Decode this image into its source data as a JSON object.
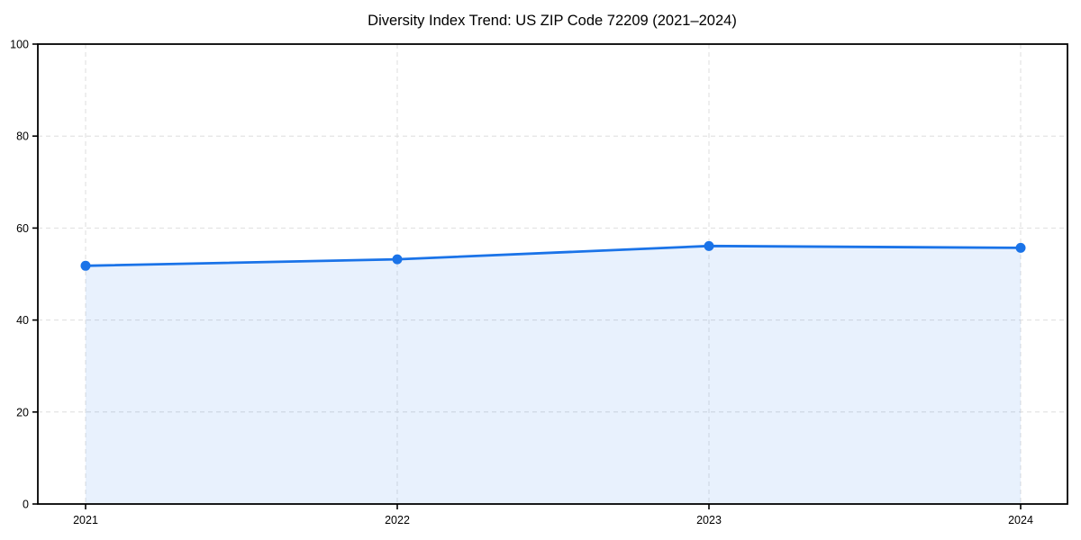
{
  "chart_data": {
    "type": "area",
    "title": "Diversity Index Trend: US ZIP Code 72209 (2021–2024)",
    "categories": [
      "2021",
      "2022",
      "2023",
      "2024"
    ],
    "series": [
      {
        "name": "Diversity Index",
        "values": [
          51.8,
          53.2,
          56.1,
          55.7
        ]
      }
    ],
    "xlabel": "",
    "ylabel": "",
    "ylim": [
      0,
      100
    ],
    "yticks": [
      0,
      20,
      40,
      60,
      80,
      100
    ],
    "grid": true,
    "grid_style": "dashed",
    "legend": false,
    "marker": "circle",
    "colors": {
      "line": "#1a73e8",
      "marker": "#1a73e8",
      "fill": "#1a73e8",
      "fill_opacity": 0.1,
      "grid": "#dedede",
      "spine": "#000000",
      "tick": "#000000",
      "title": "#000000",
      "background": "#ffffff"
    }
  }
}
